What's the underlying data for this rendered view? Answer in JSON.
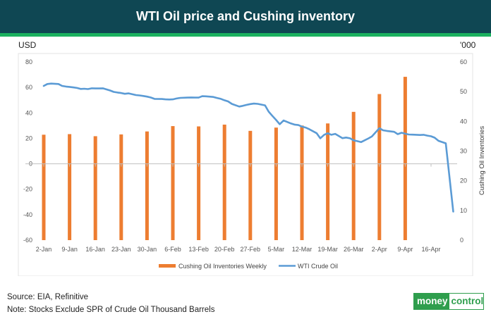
{
  "header": {
    "title": "WTI Oil price and Cushing inventory"
  },
  "left_unit": "USD",
  "right_unit": "'000",
  "chart_data": {
    "type": "bar+line",
    "categories": [
      "2-Jan",
      "9-Jan",
      "16-Jan",
      "23-Jan",
      "30-Jan",
      "6-Feb",
      "13-Feb",
      "20-Feb",
      "27-Feb",
      "5-Mar",
      "12-Mar",
      "19-Mar",
      "26-Mar",
      "2-Apr",
      "9-Apr",
      "16-Apr"
    ],
    "y_left": {
      "ticks": [
        "80",
        "60",
        "40",
        "20",
        "0",
        "-20",
        "-40",
        "-60"
      ],
      "ylim": [
        -60,
        80
      ]
    },
    "y_right": {
      "ticks": [
        "60",
        "50",
        "40",
        "30",
        "20",
        "10",
        "0"
      ],
      "ylim": [
        0,
        60
      ],
      "label": "Cushing Oil Inventories"
    },
    "series": [
      {
        "name": "Cushing Oil Inventories Weekly",
        "type": "bar",
        "axis": "right",
        "color": "#ed7d31",
        "x": [
          0,
          1,
          2,
          3,
          4,
          5,
          6,
          7,
          8,
          9,
          10,
          11,
          12,
          13,
          14
        ],
        "values": [
          35.5,
          35.7,
          35.0,
          35.6,
          36.6,
          38.4,
          38.3,
          38.9,
          36.8,
          37.9,
          38.6,
          39.3,
          43.2,
          49.2,
          55.0
        ]
      },
      {
        "name": "WTI Crude Oil",
        "type": "line",
        "axis": "left",
        "color": "#5b9bd5",
        "x": [
          0,
          0.14,
          0.29,
          0.57,
          0.71,
          0.86,
          1.0,
          1.14,
          1.29,
          1.43,
          1.57,
          1.71,
          1.86,
          2.0,
          2.14,
          2.29,
          2.57,
          2.71,
          2.86,
          3.0,
          3.14,
          3.29,
          3.57,
          3.71,
          3.86,
          4.0,
          4.14,
          4.29,
          4.57,
          4.71,
          4.86,
          5.0,
          5.14,
          5.29,
          5.57,
          5.71,
          5.86,
          6.0,
          6.14,
          6.29,
          6.57,
          6.71,
          6.86,
          7.0,
          7.14,
          7.29,
          7.57,
          7.71,
          7.86,
          8.0,
          8.14,
          8.29,
          8.57,
          8.71,
          8.86,
          9.0,
          9.14,
          9.29,
          9.57,
          9.71,
          9.86,
          10.0,
          10.14,
          10.29,
          10.57,
          10.71,
          10.86,
          11.0,
          11.14,
          11.29,
          11.57,
          11.71,
          11.86,
          12.0,
          12.14,
          12.29,
          12.57,
          12.71,
          12.86,
          13.0,
          13.14,
          13.29,
          13.57,
          13.71,
          13.86,
          14.0,
          14.14,
          14.29,
          14.57,
          14.71,
          14.86,
          15.0,
          15.14,
          15.29,
          15.57,
          15.86
        ],
        "values": [
          61.2,
          62.7,
          63.0,
          62.7,
          61.2,
          60.7,
          60.4,
          60.0,
          59.6,
          58.8,
          59.0,
          58.7,
          59.3,
          59.2,
          59.2,
          59.3,
          57.6,
          56.5,
          56.0,
          55.6,
          55.0,
          55.3,
          54.0,
          53.7,
          53.3,
          52.8,
          52.1,
          51.0,
          50.9,
          50.6,
          50.5,
          50.6,
          51.3,
          51.8,
          52.0,
          52.1,
          52.0,
          52.0,
          53.1,
          53.0,
          52.5,
          51.7,
          51.0,
          49.9,
          49.0,
          47.0,
          45.0,
          45.5,
          46.3,
          46.9,
          47.3,
          47.1,
          45.9,
          41.0,
          37.5,
          34.4,
          31.1,
          34.0,
          31.7,
          30.8,
          30.4,
          29.2,
          28.5,
          27.1,
          24.0,
          20.0,
          22.8,
          24.0,
          22.8,
          23.5,
          20.1,
          20.6,
          20.0,
          18.4,
          17.8,
          17.0,
          19.9,
          21.5,
          24.9,
          28.0,
          26.3,
          25.8,
          25.1,
          23.3,
          24.4,
          23.6,
          23.0,
          22.9,
          22.6,
          22.8,
          22.1,
          21.6,
          20.5,
          18.0,
          16.1,
          -37.6
        ]
      }
    ],
    "legend_position": "bottom",
    "grid": false
  },
  "footer": {
    "source": "Source: EIA, Refinitive",
    "note": "Note: Stocks Exclude SPR of Crude Oil Thousand Barrels"
  },
  "logo": {
    "part1": "money",
    "part2": "control"
  },
  "colors": {
    "header_bg": "#0f4753",
    "header_stripe": "#1bb15f",
    "bar": "#ed7d31",
    "line": "#5b9bd5"
  }
}
